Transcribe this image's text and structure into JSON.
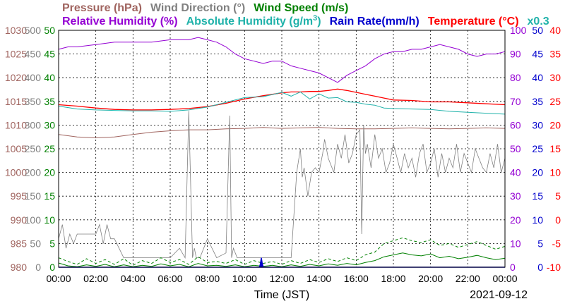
{
  "chart_data": {
    "type": "line",
    "title": "",
    "xlabel": "Time (JST)",
    "date_label": "2021-09-12",
    "x_ticks": [
      "00:00",
      "02:00",
      "04:00",
      "06:00",
      "08:00",
      "10:00",
      "12:00",
      "14:00",
      "16:00",
      "18:00",
      "20:00",
      "22:00",
      "00:00"
    ],
    "grid": true,
    "legend_rows": [
      [
        {
          "text": "Pressure (hPa)",
          "color": "#a0645f"
        },
        {
          "text": "Wind Direction (°)",
          "color": "#808080"
        },
        {
          "text": "Wind Speed (m/s)",
          "color": "#008000"
        }
      ],
      [
        {
          "text": "Relative Humidity (%)",
          "color": "#9400d3"
        },
        {
          "text": "Absolute Humidity (g/m",
          "sup": "3",
          "tail": ")",
          "color": "#20b2aa"
        },
        {
          "text": "Rain Rate(mm/h)",
          "color": "#0000cd"
        },
        {
          "text": "Temperature (°C)",
          "color": "#ff0000"
        },
        {
          "text": "x0.3",
          "color": "#20b2aa"
        }
      ]
    ],
    "axes": {
      "pressure": {
        "range": [
          980,
          1030
        ],
        "ticks": [
          "1030",
          "1025",
          "1020",
          "1015",
          "1010",
          "1005",
          "1000",
          "995",
          "990",
          "985",
          "980"
        ],
        "color": "#a0645f"
      },
      "wind_direction": {
        "range": [
          0,
          500
        ],
        "ticks": [
          "500",
          "450",
          "400",
          "350",
          "300",
          "250",
          "200",
          "150",
          "100",
          "50",
          "0"
        ],
        "color": "#808080"
      },
      "wind_speed": {
        "range": [
          0,
          50
        ],
        "ticks": [
          "50",
          "45",
          "40",
          "35",
          "30",
          "25",
          "20",
          "15",
          "10",
          "5",
          "0"
        ],
        "color": "#008000"
      },
      "humidity": {
        "range": [
          0,
          100
        ],
        "ticks": [
          "100",
          "90",
          "80",
          "70",
          "60",
          "50",
          "40",
          "30",
          "20",
          "10",
          "0"
        ],
        "color": "#9400d3"
      },
      "rain_rate": {
        "range": [
          0,
          50
        ],
        "ticks": [
          "50",
          "45",
          "40",
          "35",
          "30",
          "25",
          "20",
          "15",
          "10",
          "5",
          "0"
        ],
        "color": "#0000cd"
      },
      "temperature": {
        "range": [
          -10,
          40
        ],
        "ticks": [
          "40",
          "35",
          "30",
          "25",
          "20",
          "15",
          "10",
          "5",
          "0",
          "-5",
          "-10"
        ],
        "color": "#ff0000"
      }
    },
    "series": [
      {
        "axis": "humidity",
        "color": "#9400d3",
        "dash": "",
        "width": 1,
        "x": [
          0,
          0.5,
          1,
          2,
          3,
          4,
          5,
          6,
          7,
          7.5,
          8,
          8.5,
          9,
          9.5,
          10,
          11,
          11.5,
          12,
          12.5,
          13,
          13.5,
          14,
          14.5,
          15,
          15.5,
          16,
          16.5,
          17,
          17.5,
          18,
          18.5,
          19,
          19.5,
          20,
          20.5,
          21,
          21.5,
          22,
          22.5,
          23,
          23.5,
          24
        ],
        "y": [
          92,
          93,
          93,
          94,
          95,
          95,
          95,
          96,
          96,
          97,
          96,
          95,
          93,
          90,
          88,
          86,
          87,
          87,
          85,
          84,
          83,
          82,
          80,
          78,
          81,
          83,
          85,
          88,
          90,
          91,
          91,
          92,
          92,
          93,
          94,
          93,
          92,
          90,
          89,
          90,
          90,
          91
        ]
      },
      {
        "axis": "temperature",
        "color": "#ff0000",
        "dash": "",
        "width": 1.3,
        "x": [
          0,
          1,
          2,
          3,
          4,
          5,
          6,
          7,
          8,
          9,
          10,
          11,
          12,
          12.5,
          13,
          13.5,
          14,
          14.5,
          15,
          15.5,
          16,
          16.5,
          17,
          17.5,
          18,
          19,
          20,
          21,
          22,
          23,
          24
        ],
        "y": [
          24.3,
          24.0,
          23.6,
          23.3,
          23.2,
          23.2,
          23.3,
          23.5,
          23.9,
          24.6,
          25.5,
          26.2,
          26.8,
          27.0,
          27.0,
          27.1,
          27.1,
          27.3,
          27.6,
          27.3,
          26.9,
          26.5,
          26.1,
          25.7,
          25.3,
          25.2,
          24.9,
          24.9,
          24.7,
          24.5,
          24.3
        ]
      },
      {
        "axis": "temperature",
        "color": "#20b2aa",
        "dash": "",
        "width": 1,
        "x": [
          0,
          1,
          2,
          3,
          4,
          5,
          6,
          7,
          8,
          9,
          10,
          11,
          12,
          12.5,
          13,
          13.5,
          14,
          14.5,
          15,
          15.5,
          16,
          16.5,
          17,
          17.5,
          18,
          19,
          20,
          21,
          22,
          23,
          24
        ],
        "y": [
          24.0,
          23.4,
          23.2,
          23.1,
          23.0,
          23.0,
          22.9,
          23.2,
          23.8,
          24.8,
          25.8,
          26.0,
          26.9,
          26.1,
          27.0,
          25.5,
          26.6,
          25.7,
          25.8,
          24.9,
          24.8,
          24.4,
          24.2,
          23.6,
          23.5,
          23.4,
          23.3,
          22.9,
          22.7,
          22.5,
          22.3
        ]
      },
      {
        "axis": "pressure",
        "color": "#a0645f",
        "dash": "",
        "width": 1,
        "x": [
          0,
          1,
          2,
          3,
          4,
          5,
          6,
          7,
          8,
          9,
          10,
          11,
          12,
          13,
          14,
          15,
          16,
          17,
          18,
          19,
          20,
          21,
          22,
          23,
          24
        ],
        "y": [
          1008.0,
          1007.5,
          1007.3,
          1007.5,
          1008.0,
          1008.5,
          1008.8,
          1009.0,
          1009.0,
          1009.2,
          1009.3,
          1009.5,
          1009.3,
          1009.4,
          1009.5,
          1009.3,
          1009.2,
          1009.2,
          1009.3,
          1009.4,
          1009.3,
          1009.2,
          1009.3,
          1009.4,
          1009.3
        ]
      },
      {
        "axis": "wind_direction",
        "color": "#808080",
        "dash": "",
        "width": 0.8,
        "x": [
          0,
          0.2,
          0.4,
          0.6,
          0.8,
          1,
          2,
          2.2,
          2.4,
          2.6,
          2.8,
          3,
          3.5,
          4,
          5,
          6,
          6.5,
          6.8,
          7,
          7.2,
          7.3,
          7.4,
          7.6,
          8,
          8.5,
          9,
          9.2,
          9.3,
          9.4,
          9.6,
          10,
          10.5,
          11,
          11.5,
          12,
          12.5,
          12.8,
          13,
          13.1,
          13.2,
          13.4,
          13.6,
          13.8,
          14,
          14.2,
          14.3,
          14.5,
          14.8,
          15,
          15.2,
          15.4,
          15.6,
          15.8,
          16,
          16.2,
          16.3,
          16.4,
          16.5,
          16.6,
          16.8,
          17,
          17.2,
          17.4,
          17.6,
          17.8,
          18,
          18.2,
          18.4,
          18.6,
          18.8,
          19,
          19.2,
          19.4,
          19.6,
          19.8,
          20,
          20.2,
          20.4,
          20.6,
          20.8,
          21,
          21.2,
          21.4,
          21.6,
          21.8,
          22,
          22.2,
          22.4,
          22.6,
          22.8,
          23,
          23.2,
          23.4,
          23.6,
          23.8,
          24
        ],
        "y": [
          60,
          90,
          40,
          70,
          50,
          70,
          70,
          90,
          50,
          90,
          60,
          60,
          20,
          20,
          20,
          20,
          40,
          20,
          330,
          20,
          40,
          20,
          20,
          60,
          20,
          30,
          320,
          20,
          40,
          20,
          20,
          20,
          20,
          20,
          20,
          20,
          200,
          250,
          190,
          210,
          150,
          200,
          210,
          200,
          240,
          270,
          230,
          200,
          260,
          230,
          280,
          220,
          240,
          280,
          290,
          70,
          300,
          240,
          260,
          210,
          280,
          230,
          250,
          200,
          220,
          260,
          230,
          200,
          240,
          210,
          230,
          190,
          240,
          260,
          200,
          220,
          250,
          190,
          240,
          200,
          230,
          210,
          260,
          200,
          240,
          220,
          200,
          250,
          230,
          210,
          200,
          240,
          210,
          260,
          200,
          230
        ]
      },
      {
        "axis": "wind_speed",
        "color": "#008000",
        "dash": "4,3",
        "width": 1,
        "x": [
          0,
          0.5,
          1,
          1.5,
          2,
          2.5,
          3,
          3.5,
          4,
          4.5,
          5,
          5.5,
          6,
          6.5,
          7,
          7.5,
          8,
          8.5,
          9,
          9.5,
          10,
          10.5,
          11,
          11.5,
          12,
          12.5,
          13,
          13.5,
          14,
          14.5,
          15,
          15.5,
          16,
          16.5,
          17,
          17.5,
          18,
          18.5,
          19,
          19.5,
          20,
          20.5,
          21,
          21.5,
          22,
          22.5,
          23,
          23.5,
          24
        ],
        "y": [
          2.0,
          1.2,
          0.6,
          1.8,
          0.8,
          1.6,
          0.6,
          1.8,
          0.4,
          1.4,
          0.8,
          2.0,
          1.0,
          1.6,
          0.6,
          2.2,
          1.0,
          1.2,
          0.8,
          1.6,
          0.6,
          1.4,
          0.8,
          1.2,
          0.6,
          1.4,
          0.8,
          1.6,
          1.0,
          1.8,
          1.2,
          2.0,
          1.4,
          2.6,
          3.2,
          5.0,
          5.6,
          6.2,
          5.6,
          5.2,
          5.8,
          4.6,
          5.0,
          4.2,
          4.8,
          5.4,
          4.6,
          3.8,
          4.4
        ]
      },
      {
        "axis": "wind_speed",
        "color": "#008000",
        "dash": "",
        "width": 1,
        "x": [
          0,
          0.5,
          1,
          1.5,
          2,
          2.5,
          3,
          3.5,
          4,
          4.5,
          5,
          5.5,
          6,
          6.5,
          7,
          7.5,
          8,
          8.5,
          9,
          9.5,
          10,
          10.5,
          11,
          11.5,
          12,
          12.5,
          13,
          13.5,
          14,
          14.5,
          15,
          15.5,
          16,
          16.5,
          17,
          17.5,
          18,
          18.5,
          19,
          19.5,
          20,
          20.5,
          21,
          21.5,
          22,
          22.5,
          23,
          23.5,
          24
        ],
        "y": [
          0.9,
          0.3,
          0.1,
          0.5,
          0.2,
          0.6,
          0.1,
          0.5,
          0.1,
          0.4,
          0.2,
          0.7,
          0.3,
          0.6,
          0.1,
          0.8,
          0.3,
          0.4,
          0.2,
          0.5,
          0.1,
          0.4,
          0.2,
          0.4,
          0.1,
          0.5,
          0.2,
          0.6,
          0.3,
          0.7,
          0.4,
          0.8,
          0.5,
          1.0,
          1.4,
          2.2,
          2.6,
          3.0,
          2.6,
          2.4,
          2.8,
          2.0,
          2.3,
          1.8,
          2.1,
          2.5,
          2.0,
          1.6,
          1.9
        ]
      },
      {
        "axis": "rain_rate",
        "color": "#0000cd",
        "dash": "",
        "width": 1.5,
        "fill": true,
        "x": [
          0,
          10.8,
          10.85,
          10.9,
          10.95,
          11.0,
          24
        ],
        "y": [
          0,
          0,
          0.7,
          2.0,
          0.8,
          0,
          0
        ]
      }
    ]
  }
}
